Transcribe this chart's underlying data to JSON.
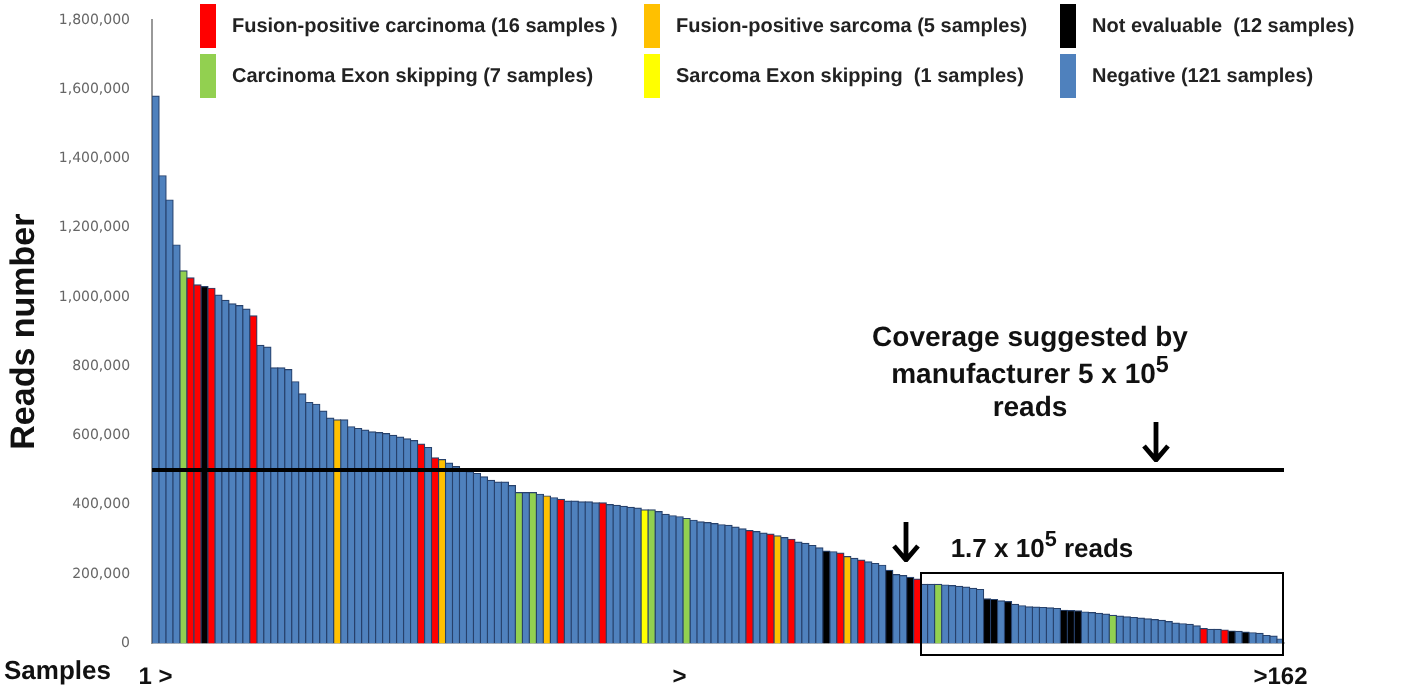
{
  "chart_data": {
    "type": "bar",
    "stacked": true,
    "ylabel": "Reads number",
    "xlabel": "Samples",
    "legend": "top",
    "categories": [
      "1 >",
      null,
      null,
      null,
      null,
      null,
      null,
      null,
      null,
      null,
      null,
      null,
      null,
      null,
      null,
      null,
      null,
      null,
      null,
      null,
      null,
      null,
      null,
      null,
      null,
      null,
      null,
      null,
      null,
      null,
      null,
      null,
      null,
      null,
      null,
      null,
      null,
      null,
      null,
      null,
      null,
      null,
      null,
      null,
      null,
      null,
      null,
      null,
      null,
      null,
      null,
      null,
      null,
      null,
      null,
      null,
      null,
      null,
      null,
      null,
      null,
      null,
      null,
      null,
      null,
      null,
      null,
      null,
      null,
      null,
      null,
      null,
      null,
      null,
      null,
      ">",
      null,
      null,
      null,
      null,
      null,
      null,
      null,
      null,
      null,
      null,
      null,
      null,
      null,
      null,
      null,
      null,
      null,
      null,
      null,
      null,
      null,
      null,
      null,
      null,
      null,
      null,
      null,
      null,
      null,
      null,
      null,
      null,
      null,
      null,
      null,
      null,
      null,
      null,
      null,
      null,
      null,
      null,
      null,
      null,
      null,
      null,
      null,
      null,
      null,
      null,
      null,
      null,
      null,
      null,
      null,
      null,
      null,
      null,
      null,
      null,
      null,
      null,
      null,
      null,
      null,
      null,
      null,
      null,
      null,
      null,
      null,
      null,
      null,
      null,
      null,
      null,
      null,
      null,
      null,
      null,
      null,
      null,
      null,
      null,
      null,
      ">162"
    ],
    "ylim": [
      0,
      1800000
    ],
    "yticks": [
      0,
      {
        "value": 200000,
        "label": "200,000"
      },
      {
        "value": 400000,
        "label": "400,000"
      },
      {
        "value": 600000,
        "label": "600,000"
      },
      {
        "value": 800000,
        "label": "800,000"
      },
      {
        "value": 1000000,
        "label": "1,000,000"
      },
      {
        "value": 1200000,
        "label": "1,200,000"
      },
      {
        "value": 1400000,
        "label": "1,400,000"
      },
      {
        "value": 1600000,
        "label": "1,600,000"
      },
      {
        "value": 1800000,
        "label": "1,800,000"
      }
    ],
    "ref_lines": [
      {
        "axis": "y",
        "value": 500000,
        "color": "#000000"
      }
    ],
    "annotations": [
      "Coverage suggested by manufacturer 5 x 10$^{5}$ reads",
      "1.7 x 10$^{5}$ reads"
    ],
    "series": [
      {
        "name": "Fusion-positive carcinoma (16 samples )",
        "color": "#ff0000",
        "values": [
          null,
          null,
          null,
          null,
          null,
          1055000,
          1035000,
          null,
          1025000,
          null,
          null,
          null,
          null,
          null,
          945000,
          null,
          null,
          null,
          null,
          null,
          null,
          null,
          null,
          null,
          null,
          null,
          null,
          null,
          null,
          null,
          null,
          null,
          null,
          null,
          null,
          null,
          null,
          null,
          575000,
          null,
          535000,
          null,
          null,
          null,
          null,
          null,
          null,
          null,
          null,
          null,
          null,
          null,
          null,
          null,
          null,
          null,
          null,
          null,
          415000,
          null,
          null,
          null,
          null,
          null,
          405000,
          null,
          null,
          null,
          null,
          null,
          null,
          null,
          null,
          null,
          null,
          null,
          null,
          null,
          null,
          null,
          null,
          null,
          null,
          null,
          null,
          325000,
          null,
          null,
          315000,
          null,
          null,
          300000,
          null,
          null,
          null,
          null,
          null,
          null,
          260000,
          null,
          null,
          240000,
          null,
          null,
          null,
          null,
          null,
          null,
          null,
          185000,
          null,
          null,
          null,
          null,
          null,
          null,
          null,
          null,
          null,
          null,
          null,
          null,
          null,
          null,
          null,
          null,
          null,
          null,
          null,
          null,
          null,
          null,
          null,
          null,
          null,
          null,
          null,
          null,
          null,
          null,
          null,
          null,
          null,
          null,
          null,
          null,
          null,
          null,
          null,
          null,
          42000,
          null,
          null,
          38000,
          null,
          null,
          null,
          null,
          null,
          null,
          null,
          null
        ]
      },
      {
        "name": "Fusion-positive sarcoma (5 samples)",
        "color": "#ffc000",
        "values": [
          null,
          null,
          null,
          null,
          null,
          null,
          null,
          null,
          null,
          null,
          null,
          null,
          null,
          null,
          null,
          null,
          null,
          null,
          null,
          null,
          null,
          null,
          null,
          null,
          null,
          null,
          645000,
          null,
          null,
          null,
          null,
          null,
          null,
          null,
          null,
          null,
          null,
          null,
          null,
          null,
          null,
          530000,
          null,
          null,
          null,
          null,
          null,
          null,
          null,
          null,
          null,
          null,
          null,
          null,
          null,
          null,
          425000,
          null,
          null,
          null,
          null,
          null,
          null,
          null,
          null,
          null,
          null,
          null,
          null,
          null,
          null,
          null,
          null,
          null,
          null,
          null,
          null,
          null,
          null,
          null,
          null,
          null,
          null,
          null,
          null,
          null,
          null,
          null,
          null,
          310000,
          null,
          null,
          null,
          null,
          null,
          null,
          null,
          null,
          null,
          250000,
          null,
          null,
          null,
          null,
          null,
          null,
          null,
          null,
          null,
          null,
          null,
          null,
          null,
          null,
          null,
          null,
          null,
          null,
          null,
          null,
          null,
          null,
          null,
          null,
          null,
          null,
          null,
          null,
          null,
          null,
          null,
          null,
          null,
          null,
          null,
          null,
          null,
          null,
          null,
          null,
          null,
          null,
          null,
          null,
          null,
          null,
          null,
          null,
          null,
          null,
          null,
          null,
          null,
          null,
          null,
          null,
          null,
          null,
          null,
          null,
          null,
          null
        ]
      },
      {
        "name": "Not evaluable  (12 samples)",
        "color": "#000000",
        "values": [
          null,
          null,
          null,
          null,
          null,
          null,
          null,
          1030000,
          null,
          null,
          null,
          null,
          null,
          null,
          null,
          null,
          null,
          null,
          null,
          null,
          null,
          null,
          null,
          null,
          null,
          null,
          null,
          null,
          null,
          null,
          null,
          null,
          null,
          null,
          null,
          null,
          null,
          null,
          null,
          null,
          null,
          null,
          null,
          null,
          null,
          null,
          null,
          null,
          null,
          null,
          null,
          null,
          null,
          null,
          null,
          null,
          null,
          null,
          null,
          null,
          null,
          null,
          null,
          null,
          null,
          null,
          null,
          null,
          null,
          null,
          null,
          null,
          null,
          null,
          null,
          null,
          null,
          null,
          null,
          null,
          null,
          null,
          null,
          null,
          null,
          null,
          null,
          null,
          null,
          null,
          null,
          null,
          null,
          null,
          null,
          null,
          266000,
          null,
          null,
          null,
          null,
          null,
          null,
          null,
          null,
          210000,
          null,
          null,
          190000,
          null,
          null,
          null,
          null,
          null,
          null,
          null,
          null,
          null,
          null,
          128000,
          126000,
          null,
          120000,
          null,
          null,
          null,
          null,
          null,
          null,
          null,
          95000,
          94000,
          93000,
          null,
          null,
          null,
          null,
          null,
          null,
          null,
          null,
          null,
          null,
          null,
          null,
          null,
          null,
          null,
          null,
          null,
          null,
          null,
          null,
          null,
          35000,
          null,
          32000,
          null,
          null,
          null,
          null,
          null
        ]
      },
      {
        "name": "Carcinoma Exon skipping (7 samples)",
        "color": "#92d050",
        "values": [
          null,
          null,
          null,
          null,
          1075000,
          null,
          null,
          null,
          null,
          null,
          null,
          null,
          null,
          null,
          null,
          null,
          null,
          null,
          null,
          null,
          null,
          null,
          null,
          null,
          null,
          null,
          null,
          null,
          null,
          null,
          null,
          null,
          null,
          null,
          null,
          null,
          null,
          null,
          null,
          null,
          null,
          null,
          null,
          null,
          null,
          null,
          null,
          null,
          null,
          null,
          null,
          null,
          435000,
          null,
          435000,
          null,
          null,
          null,
          null,
          null,
          null,
          null,
          null,
          null,
          null,
          null,
          null,
          null,
          null,
          null,
          null,
          385000,
          null,
          null,
          null,
          null,
          360000,
          null,
          null,
          null,
          null,
          null,
          null,
          null,
          null,
          null,
          null,
          null,
          null,
          null,
          null,
          null,
          null,
          null,
          null,
          null,
          null,
          null,
          null,
          null,
          null,
          null,
          null,
          null,
          null,
          null,
          null,
          null,
          null,
          null,
          null,
          null,
          170000,
          null,
          null,
          null,
          null,
          null,
          null,
          null,
          null,
          null,
          null,
          null,
          null,
          null,
          null,
          null,
          null,
          null,
          null,
          null,
          null,
          null,
          null,
          null,
          null,
          80000,
          null,
          null,
          null,
          null,
          null,
          null,
          null,
          null,
          null,
          null,
          null,
          null,
          null,
          null,
          null,
          null,
          null,
          null,
          null,
          null,
          null,
          null,
          null,
          null
        ]
      },
      {
        "name": "Sarcoma Exon skipping  (1 samples)",
        "color": "#ffff00",
        "values": [
          null,
          null,
          null,
          null,
          null,
          null,
          null,
          null,
          null,
          null,
          null,
          null,
          null,
          null,
          null,
          null,
          null,
          null,
          null,
          null,
          null,
          null,
          null,
          null,
          null,
          null,
          null,
          null,
          null,
          null,
          null,
          null,
          null,
          null,
          null,
          null,
          null,
          null,
          null,
          null,
          null,
          null,
          null,
          null,
          null,
          null,
          null,
          null,
          null,
          null,
          null,
          null,
          null,
          null,
          null,
          null,
          null,
          null,
          null,
          null,
          null,
          null,
          null,
          null,
          null,
          null,
          null,
          null,
          null,
          null,
          385000,
          null,
          null,
          null,
          null,
          null,
          null,
          null,
          null,
          null,
          null,
          null,
          null,
          null,
          null,
          null,
          null,
          null,
          null,
          null,
          null,
          null,
          null,
          null,
          null,
          null,
          null,
          null,
          null,
          null,
          null,
          null,
          null,
          null,
          null,
          null,
          null,
          null,
          null,
          null,
          null,
          null,
          null,
          null,
          null,
          null,
          null,
          null,
          null,
          null,
          null,
          null,
          null,
          null,
          null,
          null,
          null,
          null,
          null,
          null,
          null,
          null,
          null,
          null,
          null,
          null,
          null,
          null,
          null,
          null,
          null,
          null,
          null,
          null,
          null,
          null,
          null,
          null,
          null,
          null,
          null,
          null,
          null,
          null,
          null,
          null,
          null,
          null,
          null,
          null,
          null,
          null
        ]
      },
      {
        "name": "Negative (121 samples)",
        "color": "#4f81bd",
        "values": [
          1580000,
          1350000,
          1280000,
          1150000,
          null,
          null,
          null,
          null,
          null,
          1005000,
          990000,
          980000,
          975000,
          965000,
          null,
          860000,
          855000,
          795000,
          795000,
          790000,
          755000,
          720000,
          695000,
          690000,
          670000,
          650000,
          null,
          645000,
          625000,
          620000,
          615000,
          610000,
          608000,
          605000,
          600000,
          595000,
          590000,
          585000,
          null,
          565000,
          null,
          null,
          520000,
          510000,
          500000,
          495000,
          490000,
          480000,
          470000,
          465000,
          465000,
          455000,
          null,
          435000,
          null,
          430000,
          null,
          420000,
          null,
          410000,
          410000,
          408000,
          408000,
          405000,
          null,
          400000,
          398000,
          395000,
          392000,
          390000,
          null,
          null,
          380000,
          372000,
          368000,
          365000,
          null,
          355000,
          350000,
          348000,
          345000,
          342000,
          340000,
          335000,
          330000,
          null,
          322000,
          318000,
          null,
          null,
          305000,
          null,
          292000,
          288000,
          282000,
          275000,
          null,
          264000,
          null,
          null,
          245000,
          null,
          235000,
          230000,
          225000,
          null,
          198000,
          195000,
          null,
          null,
          170000,
          170000,
          null,
          168000,
          166000,
          164000,
          162000,
          158000,
          155000,
          null,
          null,
          122000,
          null,
          112000,
          108000,
          105000,
          104000,
          103000,
          102000,
          100000,
          null,
          null,
          null,
          90000,
          88000,
          86000,
          84000,
          null,
          78000,
          76000,
          74000,
          72000,
          70000,
          68000,
          66000,
          62000,
          58000,
          56000,
          54000,
          50000,
          null,
          40000,
          40000,
          null,
          null,
          34000,
          null,
          30000,
          28000,
          22000,
          20000,
          12000
        ]
      }
    ]
  }
}
